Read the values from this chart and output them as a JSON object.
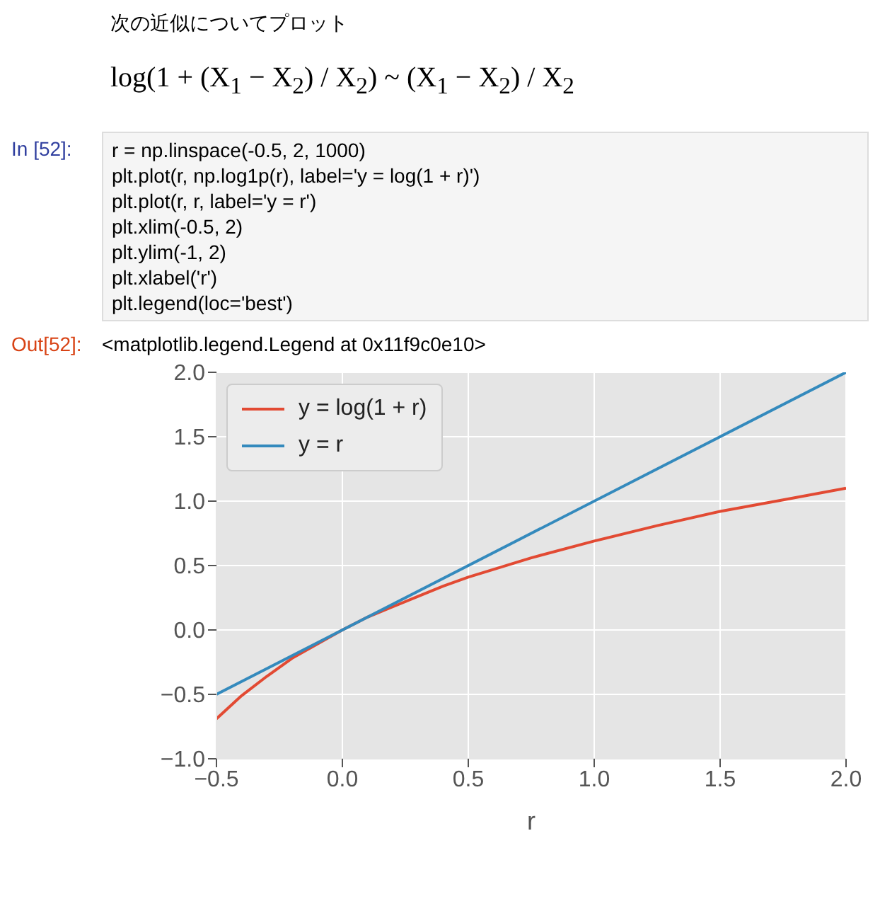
{
  "chart_data": {
    "type": "line",
    "title": "次の近似についてプロット",
    "subtitle": "log(1 + (X$_{1}$ − X$_{2}$) / X$_{2}$) ~ (X$_{1}$ − X$_{2}$) / X$_{2}$",
    "annotations": [
      "In [52]:",
      "r = np.linspace(-0.5, 2, 1000)",
      "plt.plot(r, np.log1p(r), label='y = log(1 + r)')",
      "plt.plot(r, r, label='y = r')",
      "plt.xlim(-0.5, 2)",
      "plt.ylim(-1, 2)",
      "plt.xlabel('r')",
      "plt.legend(loc='best')",
      "Out[52]:",
      "<matplotlib.legend.Legend at 0x11f9c0e10>"
    ],
    "xlabel": "r",
    "series": [
      {
        "name": "y = log(1 + r)",
        "color": "#e24a33",
        "x": [
          -0.5,
          -0.4,
          -0.3,
          -0.2,
          -0.1,
          0,
          0.1,
          0.2,
          0.3,
          0.4,
          0.5,
          0.75,
          1,
          1.25,
          1.5,
          1.75,
          2
        ],
        "values": [
          -0.69,
          -0.51,
          -0.36,
          -0.22,
          -0.11,
          0,
          0.1,
          0.18,
          0.26,
          0.34,
          0.41,
          0.56,
          0.69,
          0.81,
          0.92,
          1.01,
          1.1
        ]
      },
      {
        "name": "y = r",
        "color": "#348abd",
        "x": [
          -0.5,
          2
        ],
        "values": [
          -0.5,
          2
        ]
      }
    ],
    "xlim": [
      -0.5,
      2
    ],
    "ylim": [
      -1,
      2
    ],
    "xticks": [
      {
        "value": -0.5,
        "label": "−0.5"
      },
      {
        "value": 0,
        "label": "0.0"
      },
      0.5,
      {
        "value": 1,
        "label": "1.0"
      },
      1.5,
      {
        "value": 2,
        "label": "2.0"
      }
    ],
    "yticks": [
      {
        "value": -1,
        "label": "−1.0"
      },
      {
        "value": -0.5,
        "label": "−0.5"
      },
      {
        "value": 0,
        "label": "0.0"
      },
      0.5,
      {
        "value": 1,
        "label": "1.0"
      },
      1.5,
      {
        "value": 2,
        "label": "2.0"
      }
    ],
    "grid": true,
    "legend": "top left"
  }
}
